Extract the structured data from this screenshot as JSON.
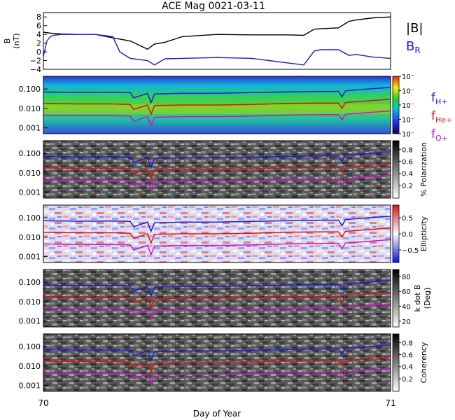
{
  "title": "ACE Mag 0021-03-11",
  "xaxis": {
    "label": "Day of Year",
    "start": "70",
    "end": "71"
  },
  "legend_top": {
    "b": "|B|",
    "br": "B",
    "br_sub": "R"
  },
  "legend_freq": [
    {
      "main": "f",
      "sub": "H+",
      "color": "#1a1adf"
    },
    {
      "main": "f",
      "sub": "He+",
      "color": "#e01010"
    },
    {
      "main": "f",
      "sub": "O+",
      "color": "#d010d0"
    }
  ],
  "panel_b": {
    "ylabel": "B",
    "yunit": "(nT)",
    "ticks": [
      "8",
      "6",
      "4",
      "2",
      "0",
      "−2",
      "−4"
    ]
  },
  "freq_ticks": [
    "0.100",
    "0.010",
    "0.001"
  ],
  "panels": [
    {
      "id": "power",
      "colorbar_label": "",
      "colorbar_ticks": [
        "10⁻",
        "10⁻",
        "10⁻",
        "10⁻",
        "10⁻"
      ]
    },
    {
      "id": "polarization",
      "colorbar_label": "% Polarization",
      "colorbar_ticks": [
        "0.8",
        "0.6",
        "0.4",
        "0.2"
      ]
    },
    {
      "id": "ellipticity",
      "colorbar_label": "Ellipticity",
      "colorbar_ticks": [
        "0.5",
        "0.0",
        "−0.5"
      ]
    },
    {
      "id": "kdotb",
      "colorbar_label": "k dot B",
      "colorbar_label2": "(Deg)",
      "colorbar_ticks": [
        "80",
        "60",
        "40",
        "20"
      ]
    },
    {
      "id": "coherency",
      "colorbar_label": "Coherency",
      "colorbar_ticks": [
        "0.8",
        "0.6",
        "0.4",
        "0.2"
      ]
    }
  ],
  "chart_data": {
    "type": "line",
    "x_range": [
      70,
      71
    ],
    "b_ylim": [
      -4,
      9
    ],
    "freq_ylim": [
      0.0005,
      0.45
    ],
    "freq_scale": "log",
    "series_b": [
      {
        "label_key": "b",
        "color": "#000000",
        "x": [
          70.0,
          70.02,
          70.05,
          70.1,
          70.15,
          70.2,
          70.25,
          70.3,
          70.32,
          70.35,
          70.4,
          70.5,
          70.6,
          70.7,
          70.75,
          70.78,
          70.8,
          70.85,
          70.88,
          70.9,
          70.95,
          71.0
        ],
        "y": [
          4.5,
          4.3,
          4.1,
          4.0,
          4.0,
          3.2,
          2.5,
          0.6,
          1.8,
          2.2,
          3.5,
          4.0,
          3.9,
          3.9,
          3.8,
          5.2,
          5.3,
          5.5,
          7.0,
          7.3,
          7.8,
          8.0
        ]
      },
      {
        "label_key": "br",
        "color": "#1a1adf",
        "x": [
          70.0,
          70.01,
          70.02,
          70.03,
          70.05,
          70.1,
          70.15,
          70.2,
          70.22,
          70.25,
          70.3,
          70.32,
          70.35,
          70.4,
          70.5,
          70.6,
          70.65,
          70.7,
          70.75,
          70.78,
          70.8,
          70.85,
          70.88,
          70.9,
          70.95,
          71.0
        ],
        "y": [
          -1.0,
          2.5,
          3.5,
          3.8,
          4.0,
          4.0,
          4.0,
          3.5,
          0.0,
          -1.5,
          -2.0,
          -3.0,
          -1.6,
          -1.5,
          -1.3,
          -1.5,
          -2.0,
          -2.5,
          -3.0,
          0.2,
          0.5,
          0.5,
          -0.8,
          -0.6,
          -1.2,
          -1.5
        ]
      }
    ],
    "series_freq": [
      {
        "label_index": 0,
        "color": "#1a1adf",
        "x": [
          70.0,
          70.1,
          70.2,
          70.25,
          70.26,
          70.3,
          70.31,
          70.32,
          70.4,
          70.5,
          70.6,
          70.7,
          70.8,
          70.85,
          70.86,
          70.87,
          70.9,
          71.0
        ],
        "y": [
          0.07,
          0.067,
          0.068,
          0.065,
          0.035,
          0.06,
          0.02,
          0.055,
          0.06,
          0.06,
          0.065,
          0.07,
          0.075,
          0.075,
          0.04,
          0.08,
          0.09,
          0.12
        ]
      },
      {
        "label_index": 1,
        "color": "#e01010",
        "x": [
          70.0,
          70.1,
          70.2,
          70.25,
          70.26,
          70.3,
          70.31,
          70.32,
          70.4,
          70.5,
          70.6,
          70.7,
          70.8,
          70.85,
          70.86,
          70.87,
          70.9,
          71.0
        ],
        "y": [
          0.018,
          0.017,
          0.017,
          0.016,
          0.009,
          0.015,
          0.005,
          0.014,
          0.015,
          0.015,
          0.016,
          0.018,
          0.019,
          0.019,
          0.01,
          0.02,
          0.022,
          0.03
        ]
      },
      {
        "label_index": 2,
        "color": "#d010d0",
        "x": [
          70.0,
          70.1,
          70.2,
          70.25,
          70.26,
          70.3,
          70.31,
          70.32,
          70.4,
          70.5,
          70.6,
          70.7,
          70.8,
          70.85,
          70.86,
          70.87,
          70.9,
          71.0
        ],
        "y": [
          0.0045,
          0.0042,
          0.0043,
          0.004,
          0.0022,
          0.0038,
          0.0013,
          0.0035,
          0.0038,
          0.0038,
          0.004,
          0.0045,
          0.0048,
          0.0048,
          0.0025,
          0.005,
          0.0055,
          0.0075
        ]
      }
    ]
  }
}
